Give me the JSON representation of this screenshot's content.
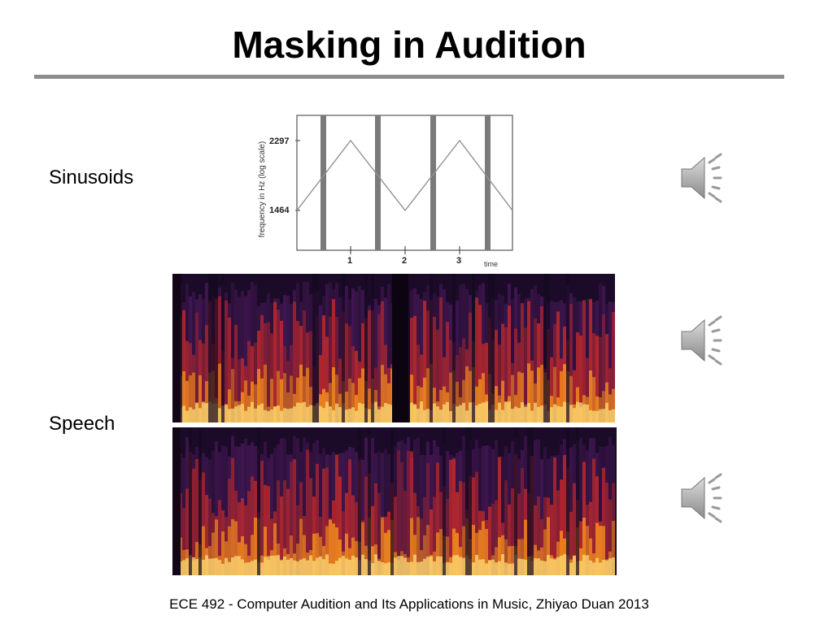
{
  "slide": {
    "title": "Masking in Audition",
    "footer": "ECE 492 - Computer Audition and Its Applications in Music, Zhiyao Duan 2013"
  },
  "labels": {
    "sinusoids": "Sinusoids",
    "speech": "Speech"
  },
  "sinusoid_plot": {
    "ylabel": "frequency in Hz (log scale)",
    "ytick_high": "2297",
    "ytick_low": "1464",
    "xticks": [
      "1",
      "2",
      "3"
    ],
    "xlabel_partial": "time (s)",
    "colors": {
      "line": "#888888",
      "masker": "#7a7a7a",
      "frame": "#555555"
    }
  },
  "spectrograms": [
    {
      "name": "speech-spectrogram-top",
      "has_gap": true
    },
    {
      "name": "speech-spectrogram-bottom",
      "has_gap": false
    }
  ],
  "icons": {
    "speaker": "speaker-sound-icon"
  }
}
